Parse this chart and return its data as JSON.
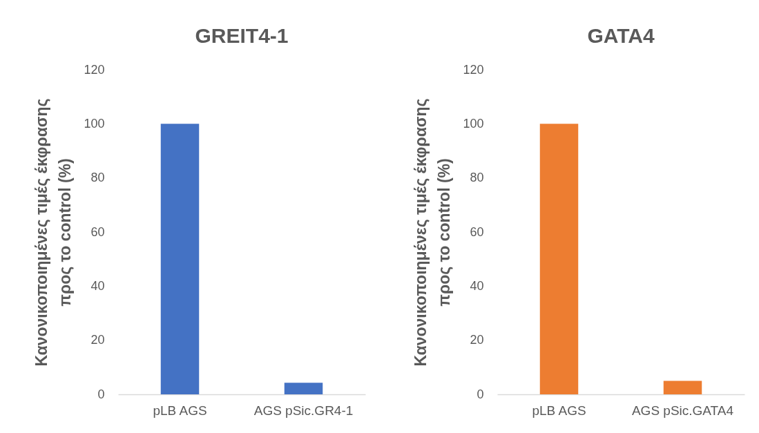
{
  "chart_data": [
    {
      "type": "bar",
      "title": "GREIT4-1",
      "ylabel": "Κανονικοποιημένες τιμές έκφρασης προς το control (%)",
      "categories": [
        "pLB AGS",
        "AGS pSic.GR4-1"
      ],
      "values": [
        100,
        4.3
      ],
      "color": "#4472c4",
      "ylim": [
        0,
        120
      ],
      "yticks": [
        0,
        20,
        40,
        60,
        80,
        100,
        120
      ],
      "grid": false
    },
    {
      "type": "bar",
      "title": "GATA4",
      "ylabel": "Κανονικοποιημένες τιμές έκφρασης προς το control (%)",
      "categories": [
        "pLB AGS",
        "AGS pSic.GATA4"
      ],
      "values": [
        100,
        5
      ],
      "color": "#ed7d31",
      "ylim": [
        0,
        120
      ],
      "yticks": [
        0,
        20,
        40,
        60,
        80,
        100,
        120
      ],
      "grid": false
    }
  ]
}
